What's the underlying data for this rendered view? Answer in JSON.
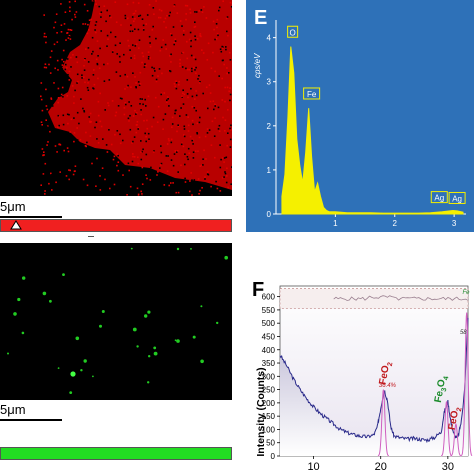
{
  "eds_maps": [
    {
      "element_color": "#e00000",
      "scale_bar_label": "5μm",
      "colorbar_color": "#f02020"
    },
    {
      "element_color": "#22cc22",
      "scale_bar_label": "5μm",
      "colorbar_color": "#22dd22"
    }
  ],
  "panels": {
    "e_letter": "E",
    "f_letter": "F"
  },
  "chart_data": [
    {
      "type": "bar",
      "panel": "E",
      "title": "",
      "xlabel": "",
      "ylabel": "cps/eV",
      "xlim": [
        0,
        3.2
      ],
      "ylim": [
        0,
        4.4
      ],
      "x_ticks": [
        "1",
        "2",
        "3"
      ],
      "y_ticks": [
        "0",
        "1",
        "2",
        "3",
        "4"
      ],
      "bar_color": "#f5f000",
      "background": "#2e71b8",
      "grid": false,
      "spectrum": {
        "x": [
          0.1,
          0.15,
          0.2,
          0.25,
          0.3,
          0.35,
          0.4,
          0.45,
          0.5,
          0.55,
          0.6,
          0.65,
          0.7,
          0.75,
          0.8,
          0.85,
          0.9,
          0.95,
          1.0,
          1.1,
          1.2,
          1.4,
          1.6,
          1.8,
          2.0,
          2.2,
          2.4,
          2.6,
          2.8,
          2.98,
          3.05,
          3.15
        ],
        "y": [
          0.4,
          0.9,
          2.2,
          3.8,
          3.2,
          1.7,
          1.1,
          0.7,
          1.4,
          2.4,
          1.3,
          0.5,
          0.7,
          0.4,
          0.15,
          0.08,
          0.05,
          0.05,
          0.05,
          0.04,
          0.03,
          0.03,
          0.03,
          0.02,
          0.02,
          0.02,
          0.02,
          0.03,
          0.05,
          0.08,
          0.07,
          0.04
        ]
      },
      "peak_labels": [
        {
          "label": "O",
          "x": 0.28,
          "y": 3.85
        },
        {
          "label": "Fe",
          "x": 0.6,
          "y": 2.45
        },
        {
          "label": "Ag",
          "x": 2.75,
          "y": 0.1
        },
        {
          "label": "Ag",
          "x": 3.05,
          "y": 0.08
        }
      ]
    },
    {
      "type": "line",
      "panel": "F",
      "title": "",
      "xlabel": "",
      "ylabel": "Intensity (Counts)",
      "xlim": [
        5,
        33
      ],
      "ylim": [
        0,
        640
      ],
      "x_ticks": [
        "10",
        "20",
        "30"
      ],
      "y_ticks": [
        "0",
        "50",
        "100",
        "150",
        "200",
        "250",
        "300",
        "350",
        "400",
        "450",
        "500",
        "550",
        "600"
      ],
      "series": [
        {
          "color": "#2a2a8a",
          "x": [
            5,
            6,
            7,
            8,
            9,
            10,
            11,
            12,
            13,
            14,
            15,
            16,
            17,
            18,
            19,
            19.5,
            20,
            20.5,
            21,
            21.5,
            22,
            23,
            24,
            25,
            26,
            27,
            28,
            29,
            29.5,
            30,
            30.5,
            31,
            31.5,
            32,
            32.5,
            33
          ],
          "y": [
            380,
            340,
            290,
            250,
            215,
            185,
            160,
            140,
            120,
            100,
            88,
            80,
            75,
            72,
            80,
            110,
            180,
            250,
            210,
            110,
            75,
            68,
            64,
            66,
            62,
            60,
            70,
            90,
            170,
            205,
            120,
            75,
            70,
            130,
            250,
            520
          ]
        }
      ],
      "residual_band": [
        555,
        630
      ],
      "annotations": [
        {
          "text": "FeO",
          "sub": "2",
          "x": 21,
          "y": 310,
          "color": "#c0181c"
        },
        {
          "text": "36.4%",
          "x": 21,
          "y": 260,
          "color": "#c0181c"
        },
        {
          "text": "Fe",
          "sub": "3",
          "text2": "O",
          "sub2": "4",
          "x": 29.3,
          "y": 250,
          "color": "#1a8a2a"
        },
        {
          "text": "FeO",
          "sub": "2",
          "x": 31.3,
          "y": 140,
          "color": "#c0181c"
        },
        {
          "text": "58",
          "x": 32.3,
          "y": 460,
          "color": "#333333"
        },
        {
          "text": "Fe",
          "x": 32.7,
          "y": 610,
          "color": "#1a8a2a"
        }
      ]
    }
  ]
}
